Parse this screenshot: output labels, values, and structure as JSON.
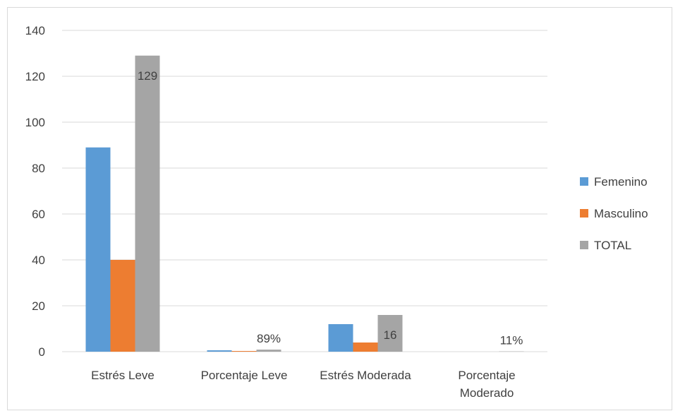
{
  "chart_data": {
    "type": "bar",
    "title": "",
    "xlabel": "",
    "ylabel": "",
    "categories": [
      "Estrés Leve",
      "Porcentaje Leve",
      "Estrés Moderada",
      "Porcentaje Moderado"
    ],
    "category_lines": [
      [
        "Estrés Leve"
      ],
      [
        "Porcentaje Leve"
      ],
      [
        "Estrés Moderada"
      ],
      [
        "Porcentaje",
        "Moderado"
      ]
    ],
    "series": [
      {
        "name": "Femenino",
        "color": "#5b9bd5",
        "values": [
          89,
          0.6,
          12,
          0
        ]
      },
      {
        "name": "Masculino",
        "color": "#ed7d31",
        "values": [
          40,
          0.3,
          4,
          0
        ]
      },
      {
        "name": "TOTAL",
        "color": "#a5a5a5",
        "values": [
          129,
          0.89,
          16,
          0.11
        ]
      }
    ],
    "data_labels": [
      {
        "series": 2,
        "category": 0,
        "text": "129"
      },
      {
        "series": 2,
        "category": 1,
        "text": "89%"
      },
      {
        "series": 2,
        "category": 2,
        "text": "16"
      },
      {
        "series": 2,
        "category": 3,
        "text": "11%"
      }
    ],
    "ylim": [
      0,
      140
    ],
    "yticks": [
      0,
      20,
      40,
      60,
      80,
      100,
      120,
      140
    ],
    "grid": true,
    "legend_position": "right"
  }
}
